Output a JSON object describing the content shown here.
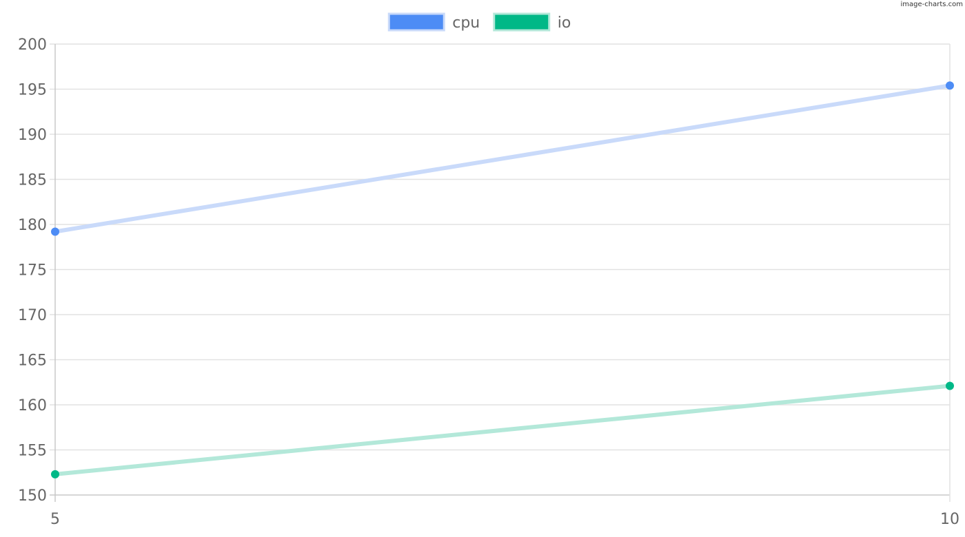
{
  "watermark": "image-charts.com",
  "chart_data": {
    "type": "line",
    "title": "",
    "xlabel": "",
    "ylabel": "",
    "x": [
      5,
      10
    ],
    "xlim": [
      5,
      10
    ],
    "xticks": [
      "5",
      "10"
    ],
    "ylim": [
      150,
      200
    ],
    "yticks": [
      "150",
      "155",
      "160",
      "165",
      "170",
      "175",
      "180",
      "185",
      "190",
      "195",
      "200"
    ],
    "grid": true,
    "legend_position": "top-center",
    "series": [
      {
        "name": "cpu",
        "values": [
          179.2,
          195.4
        ],
        "color": "#4d8cf5",
        "line_color": "#c9dafa"
      },
      {
        "name": "io",
        "values": [
          152.3,
          162.1
        ],
        "color": "#00b887",
        "line_color": "#b3e8d9"
      }
    ]
  }
}
